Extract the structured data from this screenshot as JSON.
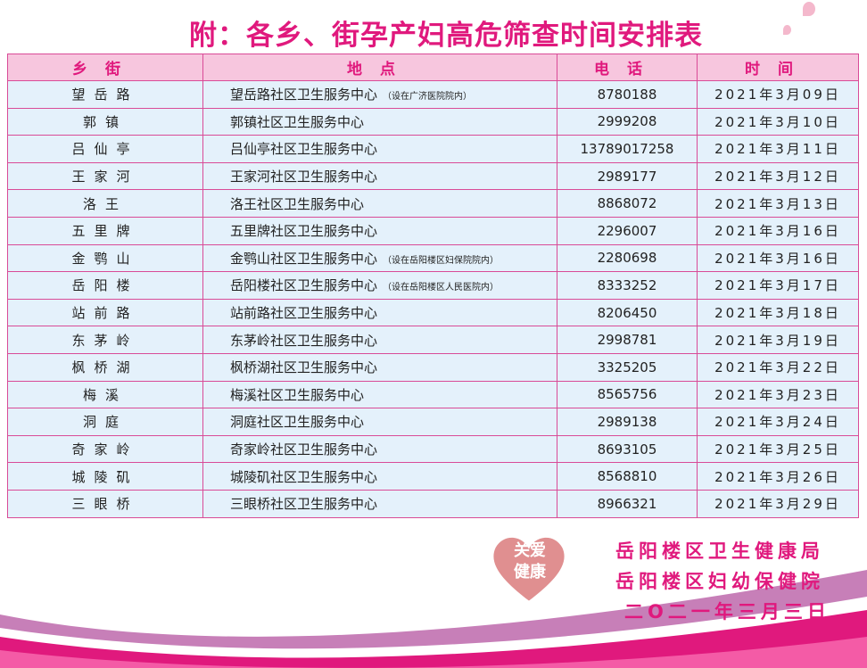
{
  "title": "附：各乡、街孕产妇高危筛查时间安排表",
  "table": {
    "headers": [
      "乡街",
      "地点",
      "电话",
      "时间"
    ],
    "rows": [
      {
        "street": "望岳路",
        "location": "望岳路社区卫生服务中心",
        "note": "（设在广济医院院内）",
        "phone": "8780188",
        "date": "2021年3月09日"
      },
      {
        "street": "郭镇",
        "location": "郭镇社区卫生服务中心",
        "note": "",
        "phone": "2999208",
        "date": "2021年3月10日"
      },
      {
        "street": "吕仙亭",
        "location": "吕仙亭社区卫生服务中心",
        "note": "",
        "phone": "13789017258",
        "date": "2021年3月11日"
      },
      {
        "street": "王家河",
        "location": "王家河社区卫生服务中心",
        "note": "",
        "phone": "2989177",
        "date": "2021年3月12日"
      },
      {
        "street": "洛王",
        "location": "洛王社区卫生服务中心",
        "note": "",
        "phone": "8868072",
        "date": "2021年3月13日"
      },
      {
        "street": "五里牌",
        "location": "五里牌社区卫生服务中心",
        "note": "",
        "phone": "2296007",
        "date": "2021年3月16日"
      },
      {
        "street": "金鹗山",
        "location": "金鹗山社区卫生服务中心",
        "note": "（设在岳阳楼区妇保院院内）",
        "phone": "2280698",
        "date": "2021年3月16日"
      },
      {
        "street": "岳阳楼",
        "location": "岳阳楼社区卫生服务中心",
        "note": "（设在岳阳楼区人民医院内）",
        "phone": "8333252",
        "date": "2021年3月17日"
      },
      {
        "street": "站前路",
        "location": "站前路社区卫生服务中心",
        "note": "",
        "phone": "8206450",
        "date": "2021年3月18日"
      },
      {
        "street": "东茅岭",
        "location": "东茅岭社区卫生服务中心",
        "note": "",
        "phone": "2998781",
        "date": "2021年3月19日"
      },
      {
        "street": "枫桥湖",
        "location": "枫桥湖社区卫生服务中心",
        "note": "",
        "phone": "3325205",
        "date": "2021年3月22日"
      },
      {
        "street": "梅溪",
        "location": "梅溪社区卫生服务中心",
        "note": "",
        "phone": "8565756",
        "date": "2021年3月23日"
      },
      {
        "street": "洞庭",
        "location": "洞庭社区卫生服务中心",
        "note": "",
        "phone": "2989138",
        "date": "2021年3月24日"
      },
      {
        "street": "奇家岭",
        "location": "奇家岭社区卫生服务中心",
        "note": "",
        "phone": "8693105",
        "date": "2021年3月25日"
      },
      {
        "street": "城陵矶",
        "location": "城陵矶社区卫生服务中心",
        "note": "",
        "phone": "8568810",
        "date": "2021年3月26日"
      },
      {
        "street": "三眼桥",
        "location": "三眼桥社区卫生服务中心",
        "note": "",
        "phone": "8966321",
        "date": "2021年3月29日"
      }
    ]
  },
  "logo": {
    "line1": "关爱",
    "line2": "健康"
  },
  "footer": {
    "org1": "岳阳楼区卫生健康局",
    "org2": "岳阳楼区妇幼保健院",
    "date": "二O二一年三月三日"
  },
  "colors": {
    "accent": "#e0197d",
    "header_bg": "#f7c6de",
    "row_bg": "#e4f1fb",
    "border": "#d94b97"
  }
}
